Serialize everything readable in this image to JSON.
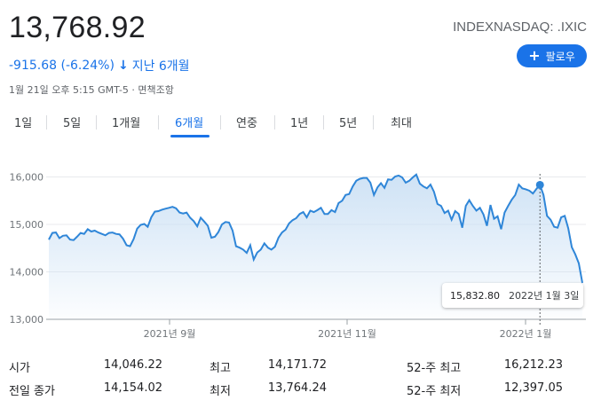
{
  "quote": {
    "price": "13,768.92",
    "change": "-915.68 (-6.24%)",
    "change_arrow": "↓",
    "period": "지난 6개월",
    "timestamp": "1월 21일 오후 5:15 GMT-5 · 면책조항",
    "ticker": "INDEXNASDAQ: .IXIC"
  },
  "follow_button": {
    "icon": "plus-icon",
    "label": "팔로우"
  },
  "tabs": [
    {
      "label": "1일",
      "active": false
    },
    {
      "label": "5일",
      "active": false
    },
    {
      "label": "1개월",
      "active": false
    },
    {
      "label": "6개월",
      "active": true
    },
    {
      "label": "연중",
      "active": false
    },
    {
      "label": "1년",
      "active": false
    },
    {
      "label": "5년",
      "active": false
    },
    {
      "label": "최대",
      "active": false
    }
  ],
  "colors": {
    "accent": "#1a73e8",
    "line": "#2f86d8",
    "fill": "#c9dff4",
    "negative": "#1a73e8"
  },
  "chart_data": {
    "type": "area",
    "y_ticks": [
      "16,000",
      "15,000",
      "14,000",
      "13,000"
    ],
    "x_ticks": [
      "2021년 9월",
      "2021년 11월",
      "2022년 1월"
    ],
    "ylim": [
      13000,
      16500
    ],
    "grid": true,
    "values": [
      14680,
      14820,
      14830,
      14710,
      14760,
      14770,
      14680,
      14670,
      14740,
      14820,
      14800,
      14900,
      14850,
      14870,
      14830,
      14800,
      14770,
      14820,
      14830,
      14800,
      14790,
      14700,
      14560,
      14540,
      14690,
      14910,
      14990,
      15010,
      14950,
      15150,
      15270,
      15280,
      15310,
      15330,
      15350,
      15370,
      15340,
      15250,
      15230,
      15250,
      15140,
      15070,
      14960,
      15140,
      15060,
      14970,
      14720,
      14740,
      14840,
      15000,
      15050,
      15040,
      14870,
      14540,
      14510,
      14470,
      14400,
      14560,
      14260,
      14410,
      14470,
      14600,
      14510,
      14470,
      14530,
      14720,
      14830,
      14890,
      15020,
      15090,
      15130,
      15220,
      15260,
      15150,
      15290,
      15260,
      15300,
      15350,
      15220,
      15220,
      15300,
      15260,
      15450,
      15500,
      15620,
      15640,
      15800,
      15920,
      15960,
      15980,
      15980,
      15880,
      15620,
      15780,
      15870,
      15770,
      15950,
      15940,
      16010,
      16030,
      15990,
      15880,
      15920,
      15990,
      16050,
      15860,
      15800,
      15760,
      15840,
      15690,
      15430,
      15390,
      15240,
      15290,
      15100,
      15280,
      15220,
      14930,
      15390,
      15510,
      15390,
      15290,
      15350,
      15210,
      14970,
      15410,
      15120,
      15170,
      14900,
      15250,
      15390,
      15520,
      15620,
      15840,
      15760,
      15740,
      15710,
      15650,
      15750,
      15832.8,
      15620,
      15180,
      15100,
      14950,
      14930,
      15150,
      15180,
      14920,
      14520,
      14370,
      14180,
      13768.92
    ]
  },
  "tooltip": {
    "value": "15,832.80",
    "date": "2022년 1월 3일"
  },
  "stats": {
    "open_label": "시가",
    "open_value": "14,046.22",
    "prev_close_label": "전일 종가",
    "prev_close_value": "14,154.02",
    "high_label": "최고",
    "high_value": "14,171.72",
    "low_label": "최저",
    "low_value": "13,764.24",
    "high52_label": "52-주 최고",
    "high52_value": "16,212.23",
    "low52_label": "52-주 최저",
    "low52_value": "12,397.05"
  }
}
